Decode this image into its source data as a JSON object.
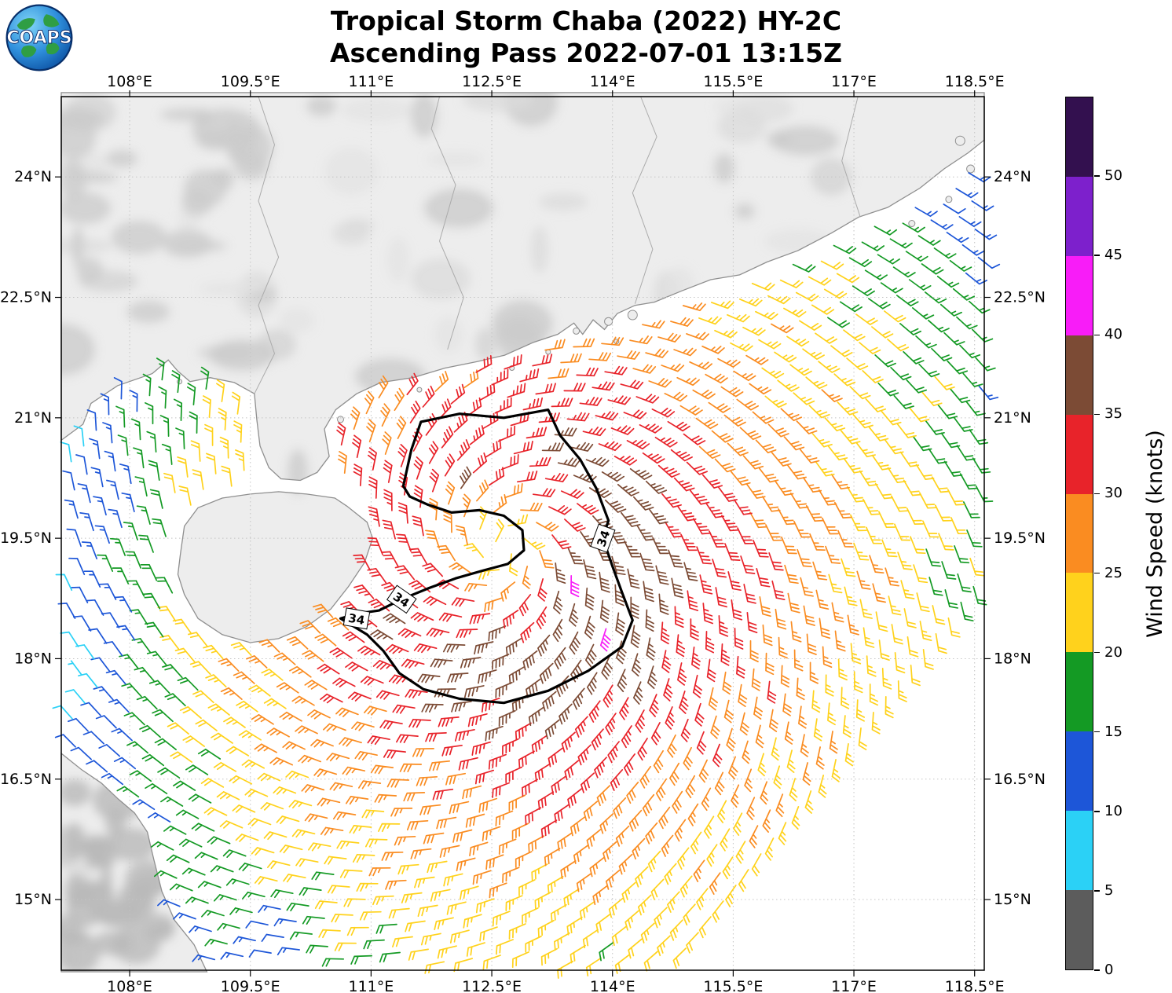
{
  "header": {
    "title_line1": "Tropical Storm Chaba (2022) HY-2C",
    "title_line2": "Ascending Pass 2022-07-01 13:15Z",
    "logo_text": "COAPS"
  },
  "map": {
    "lon_range": [
      107.15,
      118.62
    ],
    "lat_range": [
      14.12,
      25.0
    ],
    "lon_tick_values": [
      108,
      109.5,
      111,
      112.5,
      114,
      115.5,
      117,
      118.5
    ],
    "lon_tick_labels": [
      "108°E",
      "109.5°E",
      "111°E",
      "112.5°E",
      "114°E",
      "115.5°E",
      "117°E",
      "118.5°E"
    ],
    "lat_tick_values": [
      24,
      22.5,
      21,
      19.5,
      18,
      16.5,
      15
    ],
    "lat_tick_labels": [
      "24°N",
      "22.5°N",
      "21°N",
      "19.5°N",
      "18°N",
      "16.5°N",
      "15°N"
    ]
  },
  "colorbar": {
    "title": "Wind Speed (knots)",
    "min": 0,
    "max": 55,
    "tick_labels": [
      "0",
      "5",
      "10",
      "15",
      "20",
      "25",
      "30",
      "35",
      "40",
      "45",
      "50"
    ],
    "bins": [
      {
        "from": 0,
        "to": 5,
        "color": "#5c5c5c"
      },
      {
        "from": 5,
        "to": 10,
        "color": "#2bd1f6"
      },
      {
        "from": 10,
        "to": 15,
        "color": "#1d56d8"
      },
      {
        "from": 15,
        "to": 20,
        "color": "#149a24"
      },
      {
        "from": 20,
        "to": 25,
        "color": "#ffd21c"
      },
      {
        "from": 25,
        "to": 30,
        "color": "#fa8c21"
      },
      {
        "from": 30,
        "to": 35,
        "color": "#e8232a"
      },
      {
        "from": 35,
        "to": 40,
        "color": "#7c4b35"
      },
      {
        "from": 40,
        "to": 45,
        "color": "#f81cf8"
      },
      {
        "from": 45,
        "to": 50,
        "color": "#7d20cc"
      },
      {
        "from": 50,
        "to": 55,
        "color": "#33104f"
      }
    ]
  },
  "chart_data": {
    "type": "wind_barb_map",
    "description": "HY-2C scatterometer ocean-surface wind barbs (knots) around Tropical Storm Chaba, colored by wind speed; black contour marks the 34-knot wind radius.",
    "wind_field_model": {
      "center": {
        "lon": 112.65,
        "lat": 19.35
      },
      "rotation": "counterclockwise",
      "eye_min_kt": 21,
      "max_wind_kt": 42,
      "profile_radii_deg": [
        0,
        0.35,
        0.8,
        1.3,
        1.9,
        2.6,
        3.4,
        4.2,
        5.0,
        6.0,
        7.0,
        8.0,
        9.5,
        12.0
      ],
      "profile_speeds_kt": [
        21,
        25,
        31,
        35.5,
        34.5,
        30,
        26.5,
        23,
        20,
        16,
        13,
        10.5,
        8.5,
        6
      ],
      "asym_dir_rad": -0.61,
      "inflow_rad": 0.35,
      "bumps": [
        {
          "lon": 113.45,
          "lat": 19.15,
          "amp": 7.5,
          "sigma2": 0.09
        },
        {
          "lon": 112.12,
          "lat": 20.12,
          "amp": 9.0,
          "sigma2": 0.03
        },
        {
          "lon": 109.8,
          "lat": 14.5,
          "amp": -5.5,
          "sigma2": 0.4
        },
        {
          "lon": 107.45,
          "lat": 17.9,
          "amp": -4.0,
          "sigma2": 0.5
        }
      ],
      "grid": {
        "origin": {
          "lon": 112.9,
          "lat": 19.5
        },
        "step_deg": 0.25,
        "track_angle_rad": 0.9
      },
      "swath_edge": {
        "slope": 1.257,
        "intercept": -130.06,
        "rule": "data where lat - slope*lon >= intercept"
      }
    },
    "contour_34kt": {
      "label": "34",
      "polygon": [
        [
          111.4,
          20.15
        ],
        [
          111.5,
          20.6
        ],
        [
          111.62,
          20.95
        ],
        [
          112.1,
          21.05
        ],
        [
          112.65,
          21.0
        ],
        [
          113.2,
          21.1
        ],
        [
          113.35,
          20.78
        ],
        [
          113.6,
          20.48
        ],
        [
          113.8,
          20.12
        ],
        [
          113.95,
          19.72
        ],
        [
          113.88,
          19.5
        ],
        [
          114.0,
          19.15
        ],
        [
          114.12,
          18.82
        ],
        [
          114.25,
          18.48
        ],
        [
          114.12,
          18.15
        ],
        [
          113.7,
          17.85
        ],
        [
          113.2,
          17.6
        ],
        [
          112.65,
          17.45
        ],
        [
          112.1,
          17.5
        ],
        [
          111.65,
          17.62
        ],
        [
          111.35,
          17.82
        ],
        [
          111.15,
          18.1
        ],
        [
          110.95,
          18.3
        ],
        [
          110.62,
          18.5
        ],
        [
          110.82,
          18.56
        ],
        [
          111.1,
          18.6
        ],
        [
          111.38,
          18.74
        ],
        [
          111.72,
          18.88
        ],
        [
          112.05,
          19.0
        ],
        [
          112.4,
          19.1
        ],
        [
          112.7,
          19.18
        ],
        [
          112.9,
          19.35
        ],
        [
          112.88,
          19.6
        ],
        [
          112.65,
          19.78
        ],
        [
          112.35,
          19.85
        ],
        [
          112.0,
          19.82
        ],
        [
          111.7,
          19.92
        ],
        [
          111.48,
          20.02
        ]
      ],
      "labels": [
        {
          "lon": 113.88,
          "lat": 19.5,
          "rot": -70
        },
        {
          "lon": 111.38,
          "lat": 18.74,
          "rot": 35
        },
        {
          "lon": 110.82,
          "lat": 18.5,
          "rot": 10
        }
      ]
    },
    "coastlines": {
      "mainland": [
        [
          107.15,
          20.72
        ],
        [
          107.42,
          20.92
        ],
        [
          107.52,
          21.18
        ],
        [
          107.85,
          21.4
        ],
        [
          108.28,
          21.55
        ],
        [
          108.48,
          21.72
        ],
        [
          108.6,
          21.58
        ],
        [
          108.75,
          21.45
        ],
        [
          109.0,
          21.5
        ],
        [
          109.3,
          21.44
        ],
        [
          109.55,
          21.3
        ],
        [
          109.58,
          20.98
        ],
        [
          109.62,
          20.65
        ],
        [
          109.73,
          20.38
        ],
        [
          109.88,
          20.24
        ],
        [
          110.12,
          20.22
        ],
        [
          110.33,
          20.32
        ],
        [
          110.48,
          20.52
        ],
        [
          110.42,
          20.86
        ],
        [
          110.56,
          21.1
        ],
        [
          110.82,
          21.3
        ],
        [
          111.12,
          21.44
        ],
        [
          111.52,
          21.5
        ],
        [
          111.92,
          21.62
        ],
        [
          112.32,
          21.7
        ],
        [
          112.66,
          21.78
        ],
        [
          113.02,
          21.94
        ],
        [
          113.32,
          22.04
        ],
        [
          113.52,
          22.18
        ],
        [
          113.63,
          22.04
        ],
        [
          113.76,
          22.22
        ],
        [
          113.9,
          22.1
        ],
        [
          114.06,
          22.3
        ],
        [
          114.28,
          22.4
        ],
        [
          114.52,
          22.44
        ],
        [
          114.86,
          22.58
        ],
        [
          115.22,
          22.72
        ],
        [
          115.58,
          22.78
        ],
        [
          115.92,
          22.94
        ],
        [
          116.3,
          23.08
        ],
        [
          116.72,
          23.3
        ],
        [
          117.06,
          23.5
        ],
        [
          117.42,
          23.62
        ],
        [
          117.82,
          23.86
        ],
        [
          118.12,
          24.1
        ],
        [
          118.42,
          24.3
        ],
        [
          118.62,
          24.46
        ],
        [
          118.62,
          25.05
        ],
        [
          107.15,
          25.05
        ]
      ],
      "hainan": [
        [
          108.63,
          19.3
        ],
        [
          108.68,
          19.65
        ],
        [
          108.85,
          19.88
        ],
        [
          109.15,
          20.0
        ],
        [
          109.5,
          20.05
        ],
        [
          109.85,
          20.08
        ],
        [
          110.2,
          20.05
        ],
        [
          110.55,
          20.0
        ],
        [
          110.7,
          19.9
        ],
        [
          110.95,
          19.7
        ],
        [
          111.02,
          19.5
        ],
        [
          110.92,
          19.2
        ],
        [
          110.72,
          18.9
        ],
        [
          110.5,
          18.62
        ],
        [
          110.2,
          18.4
        ],
        [
          109.85,
          18.25
        ],
        [
          109.5,
          18.2
        ],
        [
          109.15,
          18.3
        ],
        [
          108.85,
          18.5
        ],
        [
          108.68,
          18.8
        ],
        [
          108.6,
          19.05
        ]
      ],
      "vietnam": [
        [
          107.15,
          16.82
        ],
        [
          107.4,
          16.62
        ],
        [
          107.65,
          16.45
        ],
        [
          107.86,
          16.25
        ],
        [
          108.06,
          16.08
        ],
        [
          108.22,
          15.84
        ],
        [
          108.3,
          15.5
        ],
        [
          108.4,
          15.1
        ],
        [
          108.56,
          14.74
        ],
        [
          108.8,
          14.44
        ],
        [
          108.96,
          14.1
        ],
        [
          107.15,
          14.1
        ]
      ]
    },
    "province_borders": [
      [
        [
          111.95,
          21.85
        ],
        [
          112.15,
          22.5
        ],
        [
          111.85,
          23.2
        ],
        [
          112.05,
          23.9
        ],
        [
          111.75,
          24.6
        ],
        [
          111.85,
          25.0
        ]
      ],
      [
        [
          114.28,
          22.42
        ],
        [
          114.5,
          23.1
        ],
        [
          114.25,
          23.8
        ],
        [
          114.55,
          24.5
        ],
        [
          114.35,
          25.0
        ]
      ],
      [
        [
          117.08,
          23.5
        ],
        [
          116.85,
          24.2
        ],
        [
          117.05,
          25.0
        ]
      ],
      [
        [
          109.55,
          21.3
        ],
        [
          109.8,
          21.8
        ],
        [
          109.6,
          22.4
        ],
        [
          109.85,
          23.0
        ],
        [
          109.6,
          23.7
        ],
        [
          109.8,
          24.4
        ],
        [
          109.6,
          25.0
        ]
      ]
    ],
    "islands": [
      [
        113.95,
        22.2,
        5
      ],
      [
        114.25,
        22.28,
        6
      ],
      [
        113.55,
        22.08,
        4
      ],
      [
        114.05,
        21.95,
        3
      ],
      [
        112.75,
        21.62,
        3
      ],
      [
        113.2,
        21.82,
        3
      ],
      [
        117.72,
        23.42,
        4
      ],
      [
        118.18,
        23.72,
        4
      ],
      [
        118.45,
        24.1,
        5
      ],
      [
        118.32,
        24.45,
        6
      ],
      [
        110.62,
        20.98,
        4
      ],
      [
        108.62,
        21.45,
        3
      ],
      [
        111.6,
        21.35,
        3
      ]
    ]
  }
}
